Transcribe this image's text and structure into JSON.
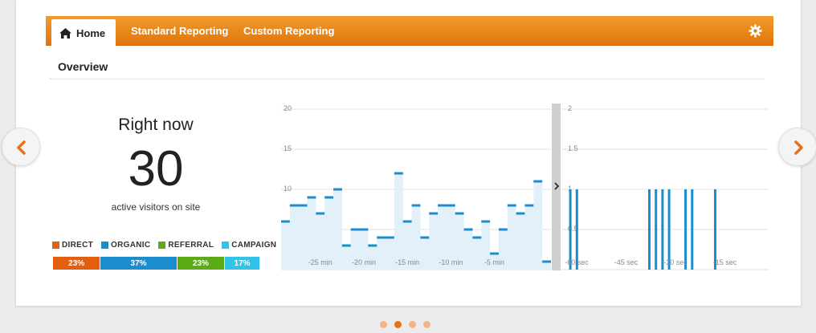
{
  "nav": {
    "home_label": "Home",
    "links": [
      "Standard Reporting",
      "Custom Reporting"
    ],
    "accent_color": "#e8800f",
    "icons": {
      "home": "home-icon",
      "settings": "gear-icon"
    }
  },
  "overview": {
    "title": "Overview"
  },
  "right_now": {
    "title": "Right now",
    "count": "30",
    "subtitle": "active visitors on site"
  },
  "traffic_sources": [
    {
      "label": "DIRECT",
      "percent_label": "23%",
      "percent": 23,
      "color": "#e35f10"
    },
    {
      "label": "ORGANIC",
      "percent_label": "37%",
      "percent": 37,
      "color": "#1b8cce"
    },
    {
      "label": "REFERRAL",
      "percent_label": "23%",
      "percent": 23,
      "color": "#5aab16"
    },
    {
      "label": "CAMPAIGN",
      "percent_label": "17%",
      "percent": 17,
      "color": "#33c2e8"
    }
  ],
  "carousel": {
    "pages": 4,
    "active_index": 1,
    "prev_icon": "chevron-left-icon",
    "next_icon": "chevron-right-icon"
  },
  "chart_data": [
    {
      "type": "area",
      "xlabel": "",
      "ylabel": "",
      "ylim": [
        0,
        20
      ],
      "yticks": [
        5,
        10,
        15,
        20
      ],
      "xticks": [
        "-25 min",
        "-20 min",
        "-15 min",
        "-10 min",
        "-5 min"
      ],
      "series_color": "#1b8cce",
      "values": [
        6,
        8,
        8,
        9,
        7,
        9,
        10,
        3,
        5,
        5,
        3,
        4,
        4,
        12,
        6,
        8,
        4,
        7,
        8,
        8,
        7,
        5,
        4,
        6,
        2,
        5,
        8,
        7,
        8,
        11,
        1
      ],
      "grid": true
    },
    {
      "type": "bar",
      "xlabel": "",
      "ylabel": "",
      "ylim": [
        0,
        2
      ],
      "yticks": [
        "0.5",
        "1",
        "1.5",
        "2"
      ],
      "xticks": [
        "-60 sec",
        "-45 sec",
        "-30 sec",
        "-15 sec"
      ],
      "series_color": "#1b8cce",
      "x": [
        -59,
        -57,
        -35,
        -33,
        -31,
        -29,
        -24,
        -22,
        -15
      ],
      "values": [
        1,
        1,
        1,
        1,
        1,
        1,
        1,
        1,
        1
      ],
      "collapse_icon": "chevron-right-icon",
      "grid": true
    }
  ]
}
